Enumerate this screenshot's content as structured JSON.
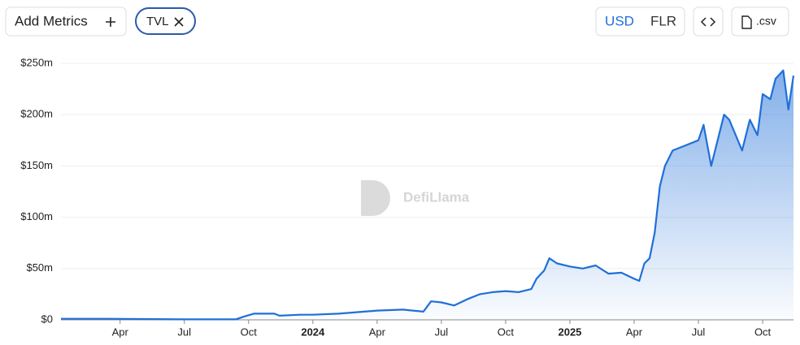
{
  "toolbar": {
    "add_metrics": "Add Metrics",
    "currencies": [
      "USD",
      "FLR"
    ],
    "csv": ".csv"
  },
  "watermark": "DefiLlama",
  "chart_data": {
    "type": "area",
    "x": [
      2023.02,
      2023.2,
      2023.5,
      2023.7,
      2023.73,
      2023.77,
      2023.85,
      2023.87,
      2023.95,
      2024.0,
      2024.1,
      2024.2,
      2024.25,
      2024.35,
      2024.43,
      2024.46,
      2024.5,
      2024.55,
      2024.6,
      2024.65,
      2024.7,
      2024.75,
      2024.8,
      2024.85,
      2024.87,
      2024.9,
      2024.92,
      2024.95,
      2025.0,
      2025.05,
      2025.1,
      2025.15,
      2025.2,
      2025.25,
      2025.27,
      2025.29,
      2025.31,
      2025.33,
      2025.35,
      2025.37,
      2025.4,
      2025.45,
      2025.5,
      2025.52,
      2025.55,
      2025.6,
      2025.62,
      2025.67,
      2025.7,
      2025.73,
      2025.75,
      2025.78,
      2025.8,
      2025.83,
      2025.85,
      2025.87
    ],
    "series": [
      {
        "name": "TVL",
        "color": "#1f6fd8",
        "values": [
          1,
          1,
          0.5,
          0.5,
          3,
          6,
          6,
          4,
          5,
          5,
          6,
          8,
          9,
          10,
          8,
          18,
          17,
          14,
          20,
          25,
          27,
          28,
          27,
          30,
          40,
          48,
          60,
          55,
          52,
          50,
          53,
          45,
          46,
          40,
          38,
          55,
          60,
          85,
          130,
          150,
          165,
          170,
          175,
          190,
          150,
          200,
          195,
          165,
          195,
          180,
          220,
          215,
          235,
          243,
          205,
          238
        ]
      }
    ],
    "xlim": [
      2023.02,
      2025.87
    ],
    "xticks": [
      {
        "value": 2023.25,
        "label": "Apr"
      },
      {
        "value": 2023.5,
        "label": "Jul"
      },
      {
        "value": 2023.75,
        "label": "Oct"
      },
      2024,
      {
        "value": 2024.25,
        "label": "Apr"
      },
      {
        "value": 2024.5,
        "label": "Jul"
      },
      {
        "value": 2024.75,
        "label": "Oct"
      },
      2025,
      {
        "value": 2025.25,
        "label": "Apr"
      },
      {
        "value": 2025.5,
        "label": "Jul"
      },
      {
        "value": 2025.75,
        "label": "Oct"
      }
    ],
    "ylim": [
      0,
      250
    ],
    "yticks": [
      {
        "value": 0,
        "label": "$0"
      },
      {
        "value": 50,
        "label": "$50m"
      },
      {
        "value": 100,
        "label": "$100m"
      },
      {
        "value": 150,
        "label": "$150m"
      },
      {
        "value": 200,
        "label": "$200m"
      },
      {
        "value": 250,
        "label": "$250m"
      }
    ],
    "grid": true
  }
}
